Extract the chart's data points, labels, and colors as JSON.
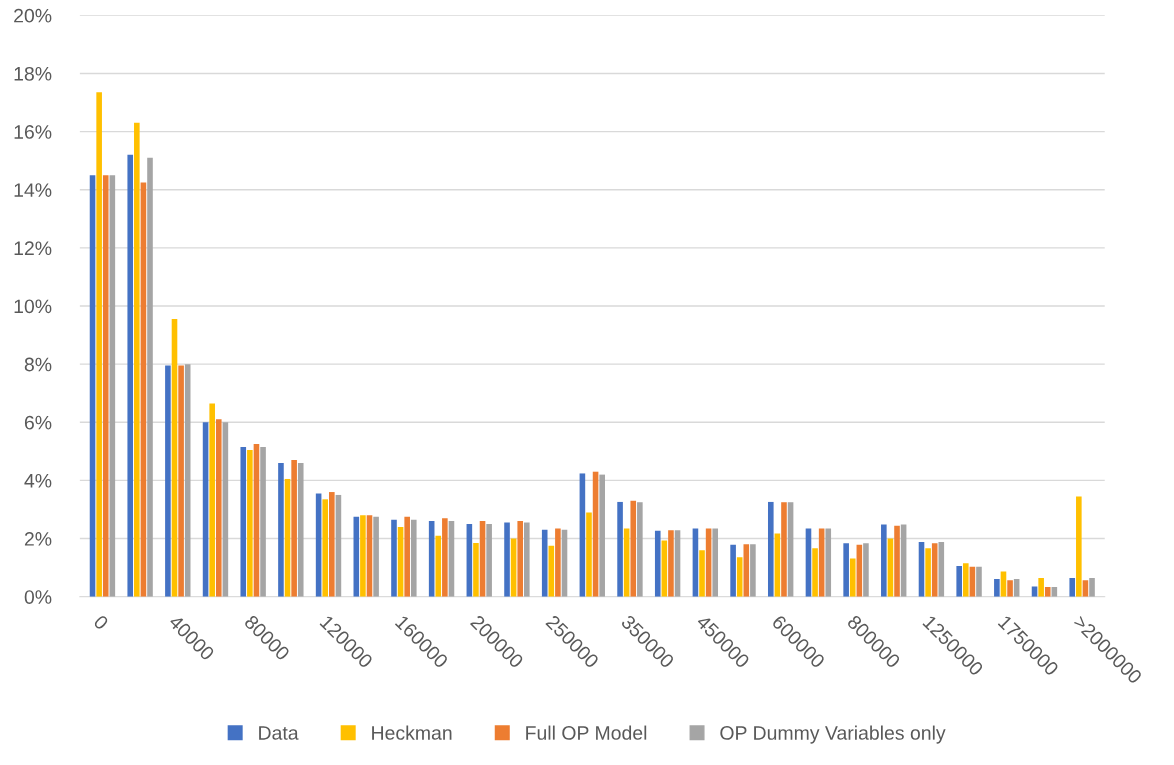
{
  "chart_data": {
    "type": "bar",
    "categories": [
      "0",
      null,
      "40000",
      null,
      "80000",
      null,
      "120000",
      null,
      "160000",
      null,
      "200000",
      null,
      "250000",
      null,
      "350000",
      null,
      "450000",
      null,
      "600000",
      null,
      "800000",
      null,
      "1250000",
      null,
      "1750000",
      null,
      ">2000000"
    ],
    "series": [
      {
        "name": "Data",
        "color": "#4472c4",
        "values": [
          14.5,
          15.2,
          7.95,
          6.0,
          5.15,
          4.6,
          3.55,
          2.75,
          2.65,
          2.6,
          2.5,
          2.55,
          2.3,
          4.24,
          3.26,
          2.27,
          2.35,
          1.79,
          3.26,
          2.35,
          1.84,
          2.48,
          1.88,
          1.06,
          0.61,
          0.35,
          0.64
        ]
      },
      {
        "name": "Heckman",
        "color": "#ffc000",
        "values": [
          17.35,
          16.3,
          9.55,
          6.65,
          5.05,
          4.05,
          3.35,
          2.8,
          2.4,
          2.1,
          1.85,
          2.0,
          1.75,
          2.9,
          2.35,
          1.93,
          1.6,
          1.36,
          2.17,
          1.67,
          1.31,
          2.0,
          1.67,
          1.15,
          0.87,
          0.64,
          3.45
        ]
      },
      {
        "name": "Full OP Model",
        "color": "#ed7d31",
        "values": [
          14.5,
          14.25,
          7.95,
          6.1,
          5.25,
          4.7,
          3.6,
          2.8,
          2.75,
          2.7,
          2.6,
          2.6,
          2.35,
          4.3,
          3.3,
          2.29,
          2.35,
          1.8,
          3.25,
          2.35,
          1.79,
          2.44,
          1.84,
          1.03,
          0.57,
          0.33,
          0.57
        ]
      },
      {
        "name": "OP Dummy Variables only",
        "color": "#a5a5a5",
        "values": [
          14.5,
          15.1,
          8.0,
          6.0,
          5.15,
          4.6,
          3.5,
          2.75,
          2.65,
          2.6,
          2.5,
          2.55,
          2.3,
          4.2,
          3.25,
          2.29,
          2.35,
          1.8,
          3.25,
          2.35,
          1.84,
          2.48,
          1.88,
          1.03,
          0.61,
          0.33,
          0.64
        ]
      }
    ],
    "ylim": [
      0,
      20
    ],
    "yticks": [
      {
        "value": 0,
        "label": "0%"
      },
      {
        "value": 2,
        "label": "2%"
      },
      {
        "value": 4,
        "label": "4%"
      },
      {
        "value": 6,
        "label": "6%"
      },
      {
        "value": 8,
        "label": "8%"
      },
      {
        "value": 10,
        "label": "10%"
      },
      {
        "value": 12,
        "label": "12%"
      },
      {
        "value": 14,
        "label": "14%"
      },
      {
        "value": 16,
        "label": "16%"
      },
      {
        "value": 18,
        "label": "18%"
      },
      {
        "value": 20,
        "label": "20%"
      }
    ],
    "grid": "y",
    "legend": "bottom"
  }
}
